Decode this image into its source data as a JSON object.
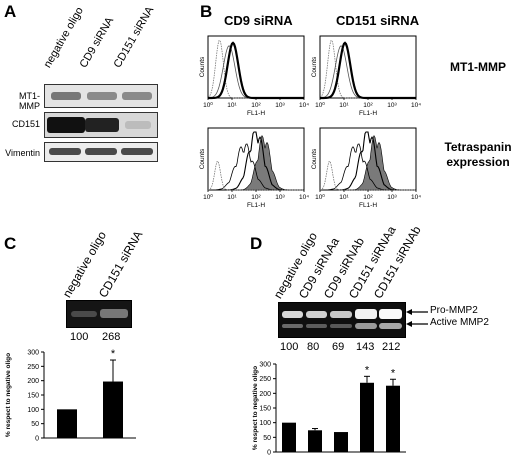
{
  "panels": {
    "a": "A",
    "b": "B",
    "c": "C",
    "d": "D"
  },
  "panel_a": {
    "lanes": [
      "negative oligo",
      "CD9 siRNA",
      "CD151 siRNA"
    ],
    "rows": [
      "MT1-MMP",
      "CD151",
      "Vimentin"
    ]
  },
  "panel_b": {
    "columns": [
      "CD9 siRNA",
      "CD151 siRNA"
    ],
    "row_labels": [
      "MT1-MMP",
      "Tetraspanin\nexpression"
    ],
    "axis_x": "FL1-H",
    "axis_y": "Counts",
    "x_ticks": [
      "10⁰",
      "10¹",
      "10²",
      "10³",
      "10⁴"
    ]
  },
  "panel_c": {
    "lanes": [
      "negative oligo",
      "CD151 siRNA"
    ],
    "values_text": [
      "100",
      "268"
    ],
    "ylabel": "% respect to negative oligo",
    "chart_data": {
      "type": "bar",
      "categories": [
        "negative oligo",
        "CD151 siRNA"
      ],
      "values": [
        100,
        197
      ],
      "errors": [
        0,
        75
      ],
      "significance": [
        "",
        "*"
      ],
      "ylim": [
        0,
        300
      ],
      "yticks": [
        0,
        50,
        100,
        150,
        200,
        250,
        300
      ]
    }
  },
  "panel_d": {
    "lanes": [
      "negative oligo",
      "CD9 siRNAa",
      "CD9 siRNAb",
      "CD151 siRNAa",
      "CD151 siRNAb"
    ],
    "values_text": [
      "100",
      "80",
      "69",
      "143",
      "212"
    ],
    "arrows": [
      "Pro-MMP2",
      "Active MMP2"
    ],
    "ylabel": "% respect to negative oligo",
    "chart_data": {
      "type": "bar",
      "categories": [
        "negative oligo",
        "CD9 siRNAa",
        "CD9 siRNAb",
        "CD151 siRNAa",
        "CD151 siRNAb"
      ],
      "values": [
        100,
        74,
        68,
        236,
        226
      ],
      "errors": [
        0,
        6,
        0,
        22,
        22
      ],
      "significance": [
        "",
        "",
        "",
        "*",
        "*"
      ],
      "ylim": [
        0,
        300
      ],
      "yticks": [
        0,
        50,
        100,
        150,
        200,
        250,
        300
      ]
    }
  }
}
